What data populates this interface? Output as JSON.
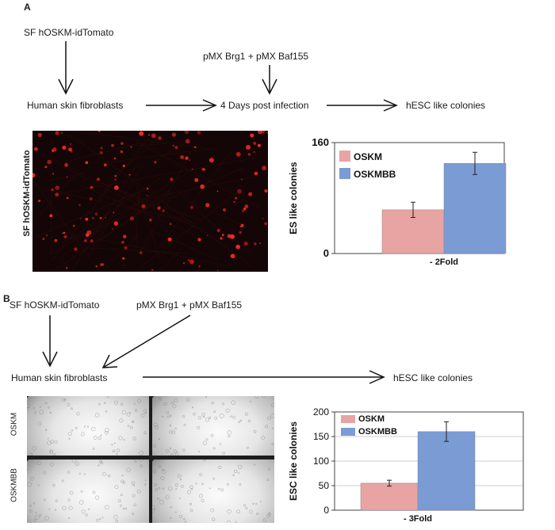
{
  "panel_a": {
    "label": "A",
    "vector_1": "SF hOSKM-idTomato",
    "vector_2": "pMX Brg1 + pMX Baf155",
    "step_1": "Human skin fibroblasts",
    "step_2": "4 Days post infection",
    "step_3": "hESC like colonies",
    "image_label": "SF hOSKM-idTomato"
  },
  "panel_b": {
    "label": "B",
    "vector_1": "SF hOSKM-idTomato",
    "vector_2": "pMX Brg1 + pMX Baf155",
    "step_1": "Human skin fibroblasts",
    "step_3": "hESC like colonies",
    "row_label_1": "OSKM",
    "row_label_2": "OSKMBB"
  },
  "chart_data": [
    {
      "type": "bar",
      "ylabel": "ES like colonies",
      "xlabel": "- 2Fold",
      "ylim": [
        0,
        160
      ],
      "yticks": [
        "0",
        "160"
      ],
      "grid": false,
      "legend": "top-left",
      "series": [
        {
          "name": "OSKM",
          "values": [
            63
          ],
          "error": [
            11
          ],
          "color": "#e8a3a3"
        },
        {
          "name": "OSKMBB",
          "values": [
            130
          ],
          "error": [
            16
          ],
          "color": "#7a9bd4"
        }
      ]
    },
    {
      "type": "bar",
      "ylabel": "ESC like colonies",
      "xlabel": "- 3Fold",
      "ylim": [
        0,
        200
      ],
      "yticks": [
        "0",
        "50",
        "100",
        "150",
        "200"
      ],
      "grid": true,
      "legend": "top-left",
      "series": [
        {
          "name": "OSKM",
          "values": [
            55
          ],
          "error": [
            6
          ],
          "color": "#e8a3a3"
        },
        {
          "name": "OSKMBB",
          "values": [
            160
          ],
          "error": [
            20
          ],
          "color": "#7a9bd4"
        }
      ]
    }
  ]
}
